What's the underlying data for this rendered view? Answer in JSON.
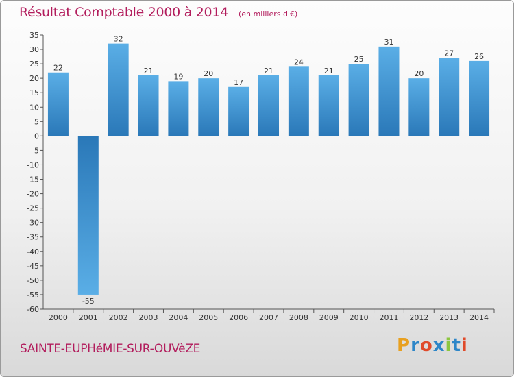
{
  "chart_data": {
    "type": "bar",
    "title": "Résultat Comptable 2000 à 2014",
    "subtitle": "(en milliers d'€)",
    "xlabel": "",
    "ylabel": "",
    "categories": [
      "2000",
      "2001",
      "2002",
      "2003",
      "2004",
      "2005",
      "2006",
      "2007",
      "2008",
      "2009",
      "2010",
      "2011",
      "2012",
      "2013",
      "2014"
    ],
    "values": [
      22,
      -55,
      32,
      21,
      19,
      20,
      17,
      21,
      24,
      21,
      25,
      31,
      20,
      27,
      26
    ],
    "ylim": [
      -60,
      35
    ],
    "ytick_step": 5,
    "grid": false,
    "bar_color_top": "#5aaee6",
    "bar_color_bottom": "#2a78b8"
  },
  "footer": {
    "commune": "SAINTE-EUPHéMIE-SUR-OUVèZE"
  },
  "logo": {
    "text": "Proxiti",
    "colors": [
      "#e8a020",
      "#2d86c8",
      "#e04a2a",
      "#2d86c8",
      "#8cc63f",
      "#2d86c8",
      "#e04a2a"
    ]
  },
  "colors": {
    "title": "#b21c5c",
    "axis": "#555555"
  }
}
